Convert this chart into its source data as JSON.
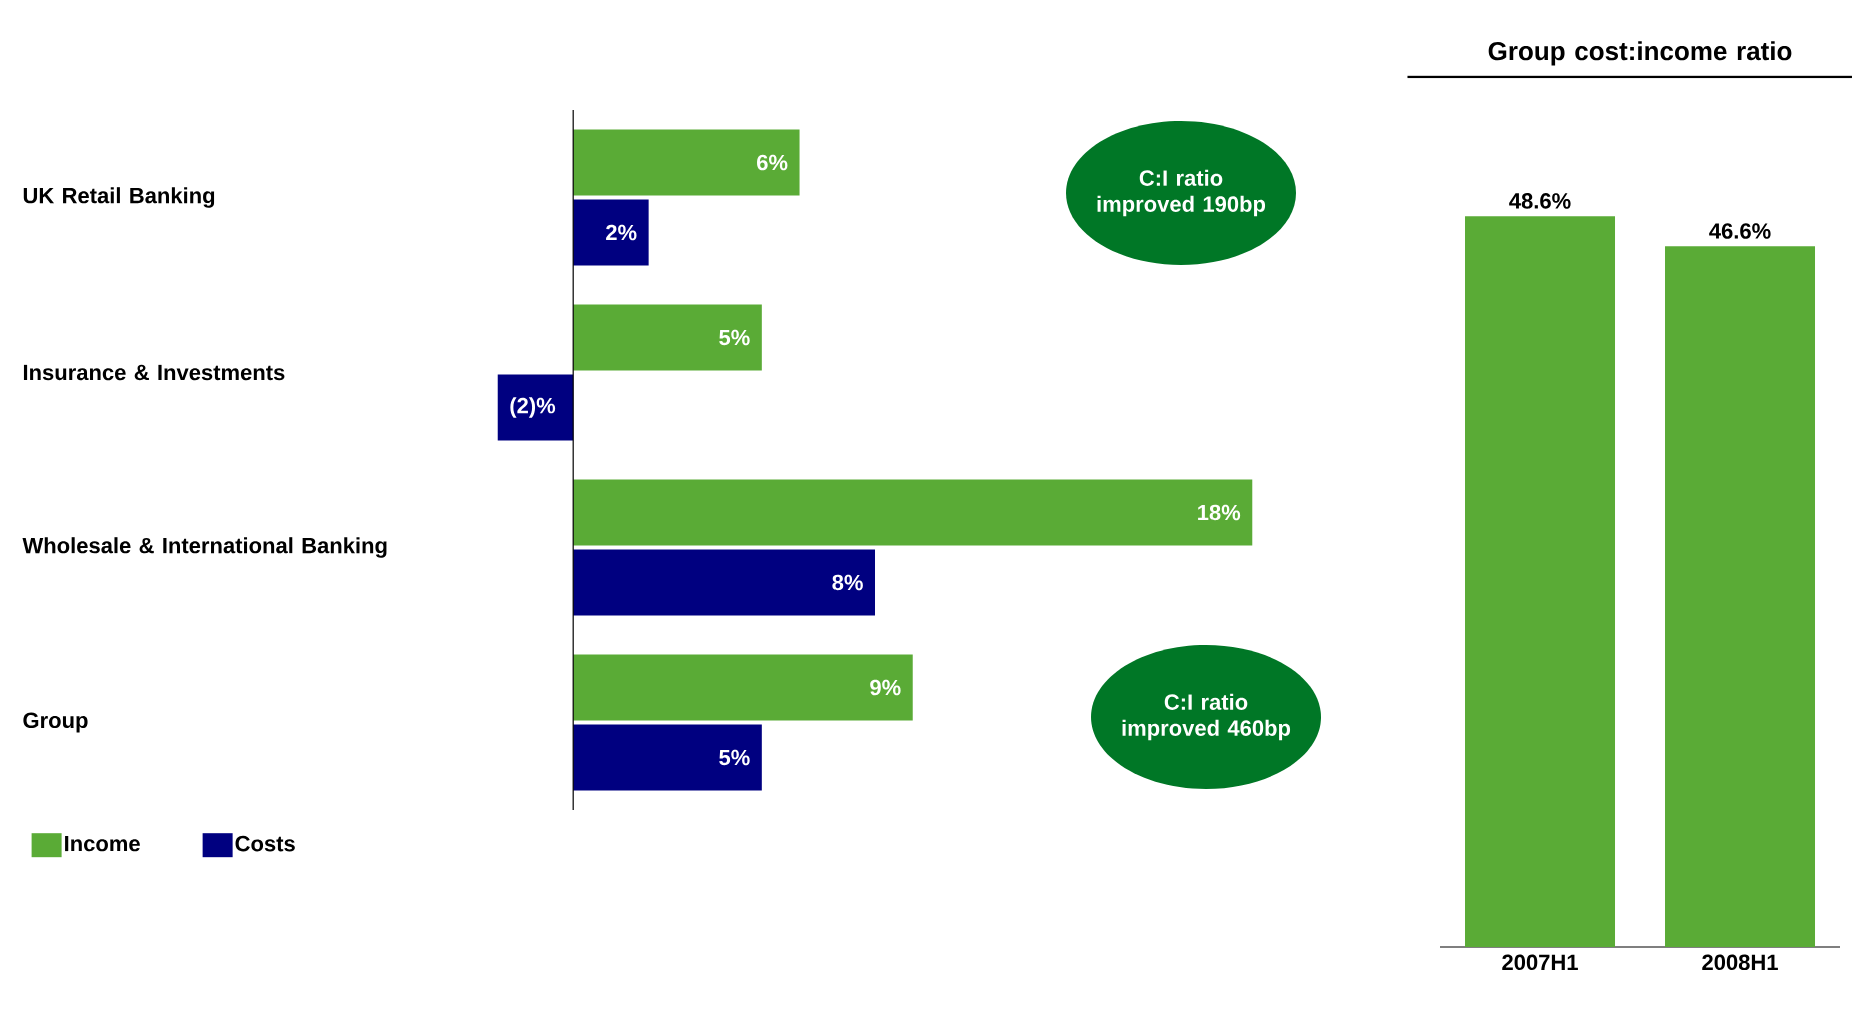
{
  "chart_data": [
    {
      "type": "bar",
      "orientation": "horizontal",
      "categories": [
        "UK Retail Banking",
        "Insurance & Investments",
        "Wholesale & International Banking",
        "Group"
      ],
      "series": [
        {
          "name": "Income",
          "color": "#5aab36",
          "values": [
            6,
            5,
            18,
            9
          ],
          "value_labels": [
            "6%",
            "5%",
            "18%",
            "9%"
          ]
        },
        {
          "name": "Costs",
          "color": "#000080",
          "values": [
            2,
            -2,
            8,
            5
          ],
          "value_labels": [
            "2%",
            "(2)%",
            "8%",
            "5%"
          ]
        }
      ],
      "legend": "bottom",
      "annotations": [
        "C:I ratio improved 190bp",
        "C:I ratio improved 460bp"
      ]
    },
    {
      "type": "bar",
      "title": "Group cost:income ratio",
      "categories": [
        "2007H1",
        "2008H1"
      ],
      "values": [
        48.6,
        46.6
      ],
      "color": "#5aab36",
      "value_labels": [
        "48.6%",
        "46.6%"
      ]
    }
  ]
}
